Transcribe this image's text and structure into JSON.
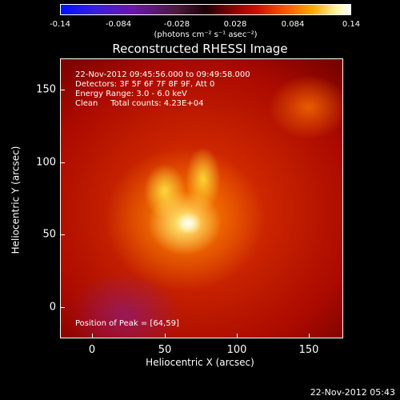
{
  "colorbar": {
    "ticks": [
      "-0.14",
      "-0.084",
      "-0.028",
      "0.028",
      "0.084",
      "0.14"
    ],
    "unit": "(photons cm⁻² s⁻¹ asec⁻²)"
  },
  "title": "Reconstructed RHESSI Image",
  "info": {
    "time": "22-Nov-2012 09:45:56.000 to 09:49:58.000",
    "detectors": "Detectors: 3F 5F 6F 7F 8F 9F, Att 0",
    "energy": "Energy Range: 3.0 - 6.0 keV",
    "clean": "Clean     Total counts: 4.23E+04",
    "peak": "Position of Peak = [64,59]"
  },
  "axes": {
    "xlabel": "Heliocentric X (arcsec)",
    "ylabel": "Heliocentric Y (arcsec)",
    "xticks": [
      "0",
      "50",
      "100",
      "150"
    ],
    "yticks": [
      "150",
      "100",
      "50",
      "0"
    ]
  },
  "footer": {
    "timestamp": "22-Nov-2012 05:43"
  }
}
